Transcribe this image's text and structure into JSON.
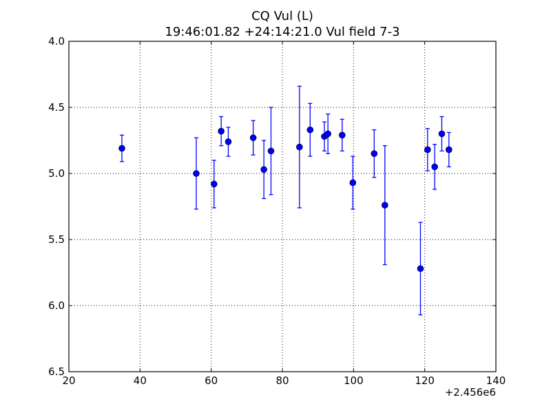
{
  "chart_data": {
    "type": "scatter",
    "title": "CQ Vul (L)",
    "subtitle": "19:46:01.82 +24:14:21.0 Vul field 7-3",
    "xlabel": "",
    "ylabel": "",
    "x_offset_label": "+2.456e6",
    "xlim": [
      20,
      140
    ],
    "ylim": [
      6.5,
      4.0
    ],
    "y_inverted": true,
    "grid": true,
    "x_ticks": [
      20,
      40,
      60,
      80,
      100,
      120,
      140
    ],
    "x_tick_labels": [
      "20",
      "40",
      "60",
      "80",
      "100",
      "120",
      "140"
    ],
    "y_ticks": [
      4.0,
      4.5,
      5.0,
      5.5,
      6.0,
      6.5
    ],
    "y_tick_labels": [
      "4.0",
      "4.5",
      "5.0",
      "5.5",
      "6.0",
      "6.5"
    ],
    "marker_color": "#0000ff",
    "points": [
      {
        "x": 34.9,
        "y": 4.81,
        "err": 0.1
      },
      {
        "x": 55.8,
        "y": 5.0,
        "err": 0.27
      },
      {
        "x": 60.8,
        "y": 5.08,
        "err": 0.18
      },
      {
        "x": 62.8,
        "y": 4.68,
        "err": 0.11
      },
      {
        "x": 64.8,
        "y": 4.76,
        "err": 0.11
      },
      {
        "x": 71.8,
        "y": 4.73,
        "err": 0.13
      },
      {
        "x": 74.8,
        "y": 4.97,
        "err": 0.22
      },
      {
        "x": 76.8,
        "y": 4.83,
        "err": 0.33
      },
      {
        "x": 84.8,
        "y": 4.8,
        "err": 0.46
      },
      {
        "x": 87.8,
        "y": 4.67,
        "err": 0.2
      },
      {
        "x": 91.8,
        "y": 4.72,
        "err": 0.11
      },
      {
        "x": 92.8,
        "y": 4.7,
        "err": 0.15
      },
      {
        "x": 96.8,
        "y": 4.71,
        "err": 0.12
      },
      {
        "x": 99.8,
        "y": 5.07,
        "err": 0.2
      },
      {
        "x": 105.8,
        "y": 4.85,
        "err": 0.18
      },
      {
        "x": 108.8,
        "y": 5.24,
        "err": 0.45
      },
      {
        "x": 118.8,
        "y": 5.72,
        "err": 0.35
      },
      {
        "x": 120.8,
        "y": 4.82,
        "err": 0.16
      },
      {
        "x": 122.8,
        "y": 4.95,
        "err": 0.17
      },
      {
        "x": 124.8,
        "y": 4.7,
        "err": 0.13
      },
      {
        "x": 126.8,
        "y": 4.82,
        "err": 0.13
      }
    ]
  }
}
